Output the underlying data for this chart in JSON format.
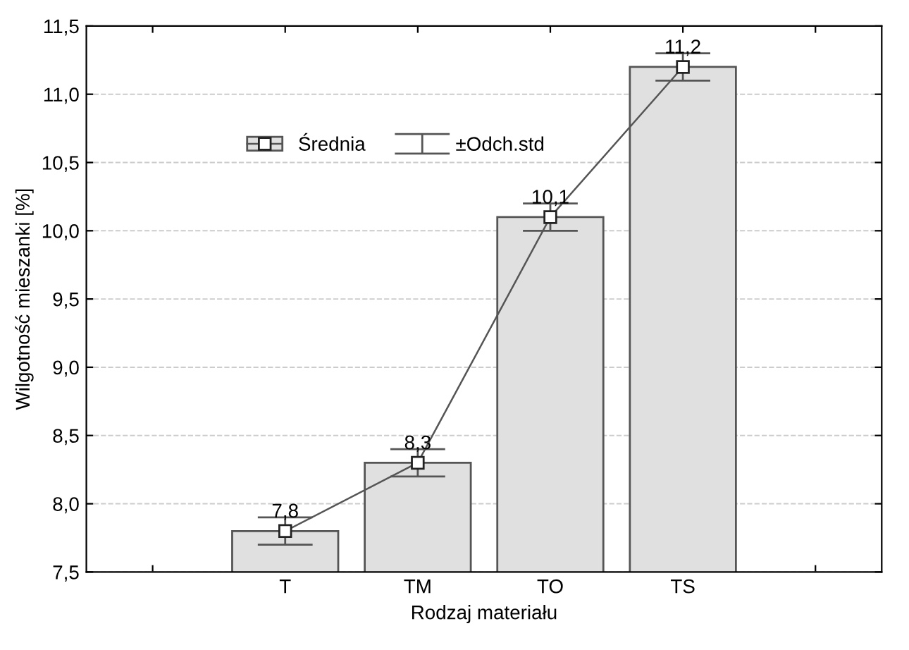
{
  "chart_data": {
    "type": "bar",
    "xlabel": "Rodzaj materiału",
    "ylabel": "Wilgotność mieszanki [%]",
    "categories": [
      null,
      "T",
      "TM",
      "TO",
      "TS",
      null
    ],
    "series": [
      {
        "name": "Średnia",
        "color": "#e0e0e0",
        "values": [
          null,
          7.8,
          8.3,
          10.1,
          11.2,
          null
        ],
        "value_labels": [
          null,
          "7,8",
          "8,3",
          "10,1",
          "11,2",
          null
        ]
      },
      {
        "type": "line",
        "name": "±Odch.std",
        "color": "#555555",
        "marker": "square",
        "values": [
          null,
          7.8,
          8.3,
          10.1,
          11.2,
          null
        ],
        "errors": [
          null,
          0.1,
          0.1,
          0.1,
          0.1,
          null
        ]
      }
    ],
    "ylim": [
      7.5,
      11.5
    ],
    "yticks": [
      {
        "value": 7.5,
        "label": "7,5"
      },
      {
        "value": 8.0,
        "label": "8,0"
      },
      {
        "value": 8.5,
        "label": "8,5"
      },
      {
        "value": 9.0,
        "label": "9,0"
      },
      {
        "value": 9.5,
        "label": "9,5"
      },
      {
        "value": 10.0,
        "label": "10,0"
      },
      {
        "value": 10.5,
        "label": "10,5"
      },
      {
        "value": 11.0,
        "label": "11,0"
      },
      {
        "value": 11.5,
        "label": "11,5"
      }
    ],
    "grid": "y",
    "legend": "top left"
  }
}
